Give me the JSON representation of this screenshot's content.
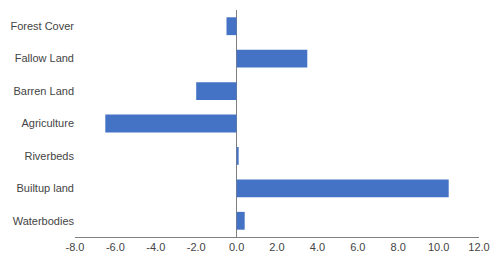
{
  "chart_data": {
    "type": "bar",
    "orientation": "horizontal",
    "categories": [
      "Waterbodies",
      "Builtup land",
      "Riverbeds",
      "Agriculture",
      "Barren Land",
      "Fallow Land",
      "Forest Cover"
    ],
    "values": [
      0.4,
      10.5,
      0.1,
      -6.5,
      -2.0,
      3.5,
      -0.5
    ],
    "color": "#4472c4",
    "xlim": [
      -8.0,
      12.0
    ],
    "xticks": [
      {
        "value": -8.0,
        "label": "-8.0"
      },
      {
        "value": -6.0,
        "label": "-6.0"
      },
      {
        "value": -4.0,
        "label": "-4.0"
      },
      {
        "value": -2.0,
        "label": "-2.0"
      },
      {
        "value": 0.0,
        "label": "0.0"
      },
      {
        "value": 2.0,
        "label": "2.0"
      },
      {
        "value": 4.0,
        "label": "4.0"
      },
      {
        "value": 6.0,
        "label": "6.0"
      },
      {
        "value": 8.0,
        "label": "8.0"
      },
      {
        "value": 10.0,
        "label": "10.0"
      },
      {
        "value": 12.0,
        "label": "12.0"
      }
    ],
    "grid": false
  }
}
